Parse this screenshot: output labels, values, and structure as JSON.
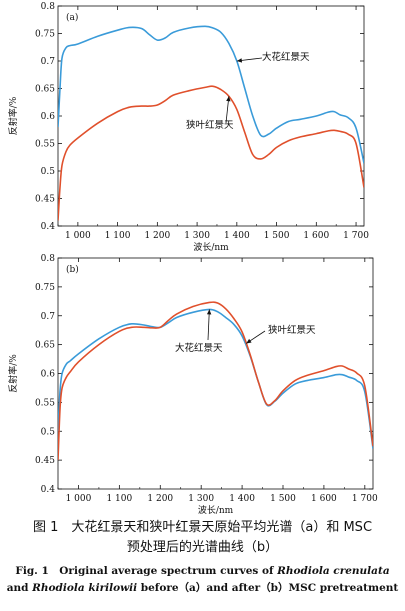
{
  "chart_data": [
    {
      "type": "line",
      "panel_label": "(a)",
      "xlabel": "波长/nm",
      "ylabel": "反射率/%",
      "xlim": [
        950,
        1720
      ],
      "ylim": [
        0.4,
        0.8
      ],
      "x_ticks": [
        1000,
        1100,
        1200,
        1300,
        1400,
        1500,
        1600,
        1700
      ],
      "x_tick_labels": [
        "1 000",
        "1 100",
        "1 200",
        "1 300",
        "1 400",
        "1 500",
        "1 600",
        "1 700"
      ],
      "y_ticks": [
        0.4,
        0.45,
        0.5,
        0.55,
        0.6,
        0.65,
        0.7,
        0.75,
        0.8
      ],
      "y_tick_labels": [
        "0.4",
        "0.45",
        "0.5",
        "0.55",
        "0.6",
        "0.65",
        "0.7",
        "0.75",
        "0.8"
      ],
      "grid": false,
      "x": [
        950,
        955,
        960,
        970,
        980,
        1000,
        1050,
        1100,
        1130,
        1160,
        1180,
        1200,
        1220,
        1240,
        1280,
        1320,
        1340,
        1360,
        1380,
        1400,
        1420,
        1440,
        1460,
        1480,
        1500,
        1530,
        1560,
        1600,
        1630,
        1645,
        1660,
        1680,
        1700,
        1720
      ],
      "series": [
        {
          "name": "大花红景天",
          "color": "#3a9bd9",
          "values": [
            0.58,
            0.65,
            0.705,
            0.724,
            0.728,
            0.731,
            0.745,
            0.756,
            0.761,
            0.759,
            0.748,
            0.738,
            0.742,
            0.752,
            0.76,
            0.763,
            0.76,
            0.752,
            0.732,
            0.7,
            0.65,
            0.6,
            0.565,
            0.567,
            0.578,
            0.59,
            0.594,
            0.6,
            0.607,
            0.608,
            0.602,
            0.597,
            0.578,
            0.514
          ]
        },
        {
          "name": "狭叶红景天",
          "color": "#e0502c",
          "values": [
            0.41,
            0.47,
            0.51,
            0.535,
            0.547,
            0.56,
            0.587,
            0.608,
            0.616,
            0.618,
            0.618,
            0.62,
            0.628,
            0.638,
            0.646,
            0.652,
            0.654,
            0.648,
            0.636,
            0.612,
            0.57,
            0.53,
            0.522,
            0.53,
            0.543,
            0.555,
            0.562,
            0.568,
            0.573,
            0.574,
            0.572,
            0.567,
            0.55,
            0.47
          ]
        }
      ],
      "annotations": [
        "大花红景天",
        "狭叶红景天"
      ]
    },
    {
      "type": "line",
      "panel_label": "(b)",
      "xlabel": "波长/nm",
      "ylabel": "反射率/%",
      "xlim": [
        950,
        1720
      ],
      "ylim": [
        0.4,
        0.8
      ],
      "x_ticks": [
        1000,
        1100,
        1200,
        1300,
        1400,
        1500,
        1600,
        1700
      ],
      "x_tick_labels": [
        "1 000",
        "1 100",
        "1 200",
        "1 300",
        "1 400",
        "1 500",
        "1 600",
        "1 700"
      ],
      "y_ticks": [
        0.4,
        0.45,
        0.5,
        0.55,
        0.6,
        0.65,
        0.7,
        0.75,
        0.8
      ],
      "y_tick_labels": [
        "0.4",
        "0.45",
        "0.5",
        "0.55",
        "0.6",
        "0.65",
        "0.7",
        "0.75",
        "0.8"
      ],
      "grid": false,
      "x": [
        950,
        955,
        960,
        970,
        980,
        1000,
        1050,
        1100,
        1130,
        1160,
        1180,
        1200,
        1220,
        1240,
        1280,
        1320,
        1340,
        1360,
        1380,
        1400,
        1420,
        1440,
        1460,
        1480,
        1500,
        1530,
        1560,
        1600,
        1630,
        1645,
        1660,
        1680,
        1700,
        1720
      ],
      "series": [
        {
          "name": "大花红景天",
          "color": "#3a9bd9",
          "values": [
            0.5,
            0.57,
            0.6,
            0.616,
            0.622,
            0.634,
            0.66,
            0.68,
            0.686,
            0.684,
            0.681,
            0.68,
            0.688,
            0.697,
            0.706,
            0.711,
            0.707,
            0.697,
            0.685,
            0.665,
            0.63,
            0.585,
            0.546,
            0.552,
            0.566,
            0.582,
            0.588,
            0.593,
            0.598,
            0.598,
            0.594,
            0.588,
            0.568,
            0.47
          ]
        },
        {
          "name": "狭叶红景天",
          "color": "#e0502c",
          "values": [
            0.45,
            0.54,
            0.575,
            0.593,
            0.603,
            0.62,
            0.65,
            0.673,
            0.68,
            0.68,
            0.679,
            0.68,
            0.692,
            0.703,
            0.716,
            0.723,
            0.722,
            0.712,
            0.695,
            0.672,
            0.632,
            0.585,
            0.547,
            0.553,
            0.57,
            0.588,
            0.597,
            0.605,
            0.612,
            0.613,
            0.608,
            0.601,
            0.578,
            0.474
          ]
        }
      ],
      "annotations": [
        "狭叶红景天",
        "大花红景天"
      ]
    }
  ],
  "caption": {
    "cn_line1": "图 1　大花红景天和狭叶红景天原始平均光谱（a）和 MSC",
    "cn_line2": "预处理后的光谱曲线（b）",
    "en_line1_a": "Fig. 1　Original average spectrum curves of ",
    "en_line1_b": "Rhodiola crenulata",
    "en_line2_a": "and ",
    "en_line2_b": "Rhodiola kirilowii",
    "en_line2_c": " before（a）and after（b）MSC pretreatment"
  }
}
